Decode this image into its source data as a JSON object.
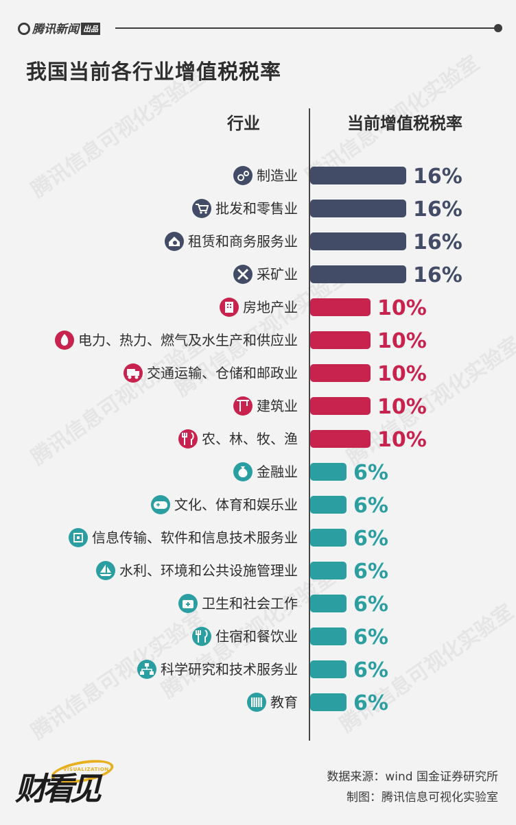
{
  "header": {
    "brand": "腾讯新闻",
    "brand_tag": "出品",
    "title": "我国当前各行业增值税税率",
    "col_industry": "行业",
    "col_rate": "当前增值税税率"
  },
  "watermark_text": "腾讯信息可视化实验室",
  "colors": {
    "rate_16": "#424c66",
    "rate_10": "#c8234f",
    "rate_6": "#2a9ea0",
    "text": "#2e2e2e"
  },
  "chart_data": {
    "type": "bar",
    "orientation": "horizontal",
    "title": "我国当前各行业增值税税率",
    "xlabel": "当前增值税税率",
    "ylabel": "行业",
    "value_unit": "%",
    "xlim": [
      0,
      16
    ],
    "grid": false,
    "legend": "none",
    "categories": [
      "制造业",
      "批发和零售业",
      "租赁和商务服务业",
      "采矿业",
      "房地产业",
      "电力、热力、燃气及水生产和供应业",
      "交通运输、仓储和邮政业",
      "建筑业",
      "农、林、牧、渔",
      "金融业",
      "文化、体育和娱乐业",
      "信息传输、软件和信息技术服务业",
      "水利、环境和公共设施管理业",
      "卫生和社会工作",
      "住宿和餐饮业",
      "科学研究和技术服务业",
      "教育"
    ],
    "values": [
      16,
      16,
      16,
      16,
      10,
      10,
      10,
      10,
      10,
      6,
      6,
      6,
      6,
      6,
      6,
      6,
      6
    ],
    "value_labels": [
      "16%",
      "16%",
      "16%",
      "16%",
      "10%",
      "10%",
      "10%",
      "10%",
      "10%",
      "6%",
      "6%",
      "6%",
      "6%",
      "6%",
      "6%",
      "6%",
      "6%"
    ],
    "icons": [
      "factory-gear-icon",
      "shopping-cart-icon",
      "house-money-icon",
      "pick-shovel-icon",
      "building-icon",
      "flame-icon",
      "truck-icon",
      "crane-icon",
      "fork-knife-icon",
      "money-bag-icon",
      "gamepad-icon",
      "chip-icon",
      "sailboat-icon",
      "first-aid-kit-icon",
      "spoon-fork-icon",
      "network-icon",
      "books-icon"
    ]
  },
  "footer": {
    "source": "数据来源：wind 国金证券研究所",
    "credit": "制图：腾讯信息可视化实验室",
    "logo_text": "财看见",
    "logo_sub": "VISUALIZATION"
  }
}
